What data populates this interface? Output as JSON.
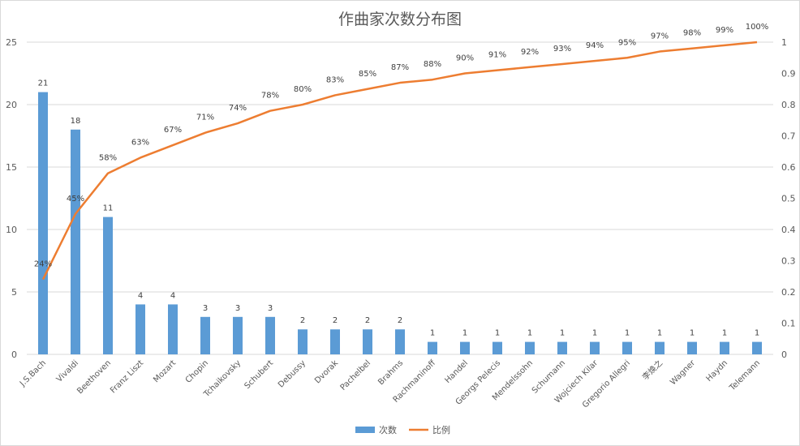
{
  "chart_data": {
    "type": "bar",
    "title": "作曲家次数分布图",
    "categories": [
      "J.S.Bach",
      "Vivaldi",
      "Beethoven",
      "Franz Liszt",
      "Mozart",
      "Chopin",
      "Tchaikovsky",
      "Schubert",
      "Debussy",
      "Dvorak",
      "Pachelbel",
      "Brahms",
      "Rachmaninoff",
      "Handel",
      "Georgs Pelecis",
      "Mendelssohn",
      "Schumann",
      "Wojciech Kilar",
      "Gregorio Allegri",
      "李焕之",
      "Wagner",
      "Haydn",
      "Telemann"
    ],
    "series": [
      {
        "name": "次数",
        "type": "bar",
        "axis": "left",
        "color": "#5b9bd5",
        "values": [
          21,
          18,
          11,
          4,
          4,
          3,
          3,
          3,
          2,
          2,
          2,
          2,
          1,
          1,
          1,
          1,
          1,
          1,
          1,
          1,
          1,
          1,
          1
        ],
        "labels": [
          "21",
          "18",
          "11",
          "4",
          "4",
          "3",
          "3",
          "3",
          "2",
          "2",
          "2",
          "2",
          "1",
          "1",
          "1",
          "1",
          "1",
          "1",
          "1",
          "1",
          "1",
          "1",
          "1"
        ]
      },
      {
        "name": "比例",
        "type": "line",
        "axis": "right",
        "color": "#ed7d31",
        "values": [
          0.24,
          0.45,
          0.58,
          0.63,
          0.67,
          0.71,
          0.74,
          0.78,
          0.8,
          0.83,
          0.85,
          0.87,
          0.88,
          0.9,
          0.91,
          0.92,
          0.93,
          0.94,
          0.95,
          0.97,
          0.98,
          0.99,
          1.0
        ],
        "labels": [
          "24%",
          "45%",
          "58%",
          "63%",
          "67%",
          "71%",
          "74%",
          "78%",
          "80%",
          "83%",
          "85%",
          "87%",
          "88%",
          "90%",
          "91%",
          "92%",
          "93%",
          "94%",
          "95%",
          "97%",
          "98%",
          "99%",
          "100%"
        ]
      }
    ],
    "y_left": {
      "min": 0,
      "max": 25,
      "ticks": [
        "0",
        "5",
        "10",
        "15",
        "20",
        "25"
      ]
    },
    "y_right": {
      "min": 0,
      "max": 1,
      "ticks": [
        "0",
        "0.1",
        "0.2",
        "0.3",
        "0.4",
        "0.5",
        "0.6",
        "0.7",
        "0.8",
        "0.9",
        "1"
      ]
    },
    "grid": true,
    "legend_position": "bottom"
  }
}
